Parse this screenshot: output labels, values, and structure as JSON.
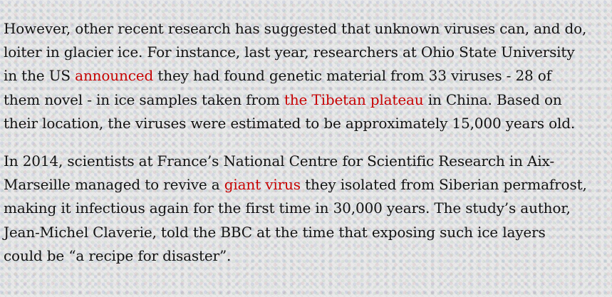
{
  "article": {
    "p1": {
      "t1": "However, other recent research has suggested that unknown viruses can, and do, loiter in glacier ice. For instance, last year, researchers at Ohio State University in the US ",
      "link1": "announced",
      "t2": " they had found genetic material from 33 viruses - 28 of them novel - in ice samples taken from ",
      "link2": "the Tibetan plateau",
      "t3": " in China. Based on their location, the viruses were estimated to be approximately 15,000 years old."
    },
    "p2": {
      "t1": "In 2014, scientists at France’s National Centre for Scientific Research in Aix-Marseille managed to revive a ",
      "link1": "giant virus",
      "t2": " they isolated from Siberian permafrost, making it infectious again for the first time in 30,000 years. The study’s author, Jean-Michel Claverie, told the BBC at the time that exposing such ice layers could be “a recipe for disaster”."
    }
  },
  "colors": {
    "text": "#121212",
    "link": "#c70000"
  }
}
